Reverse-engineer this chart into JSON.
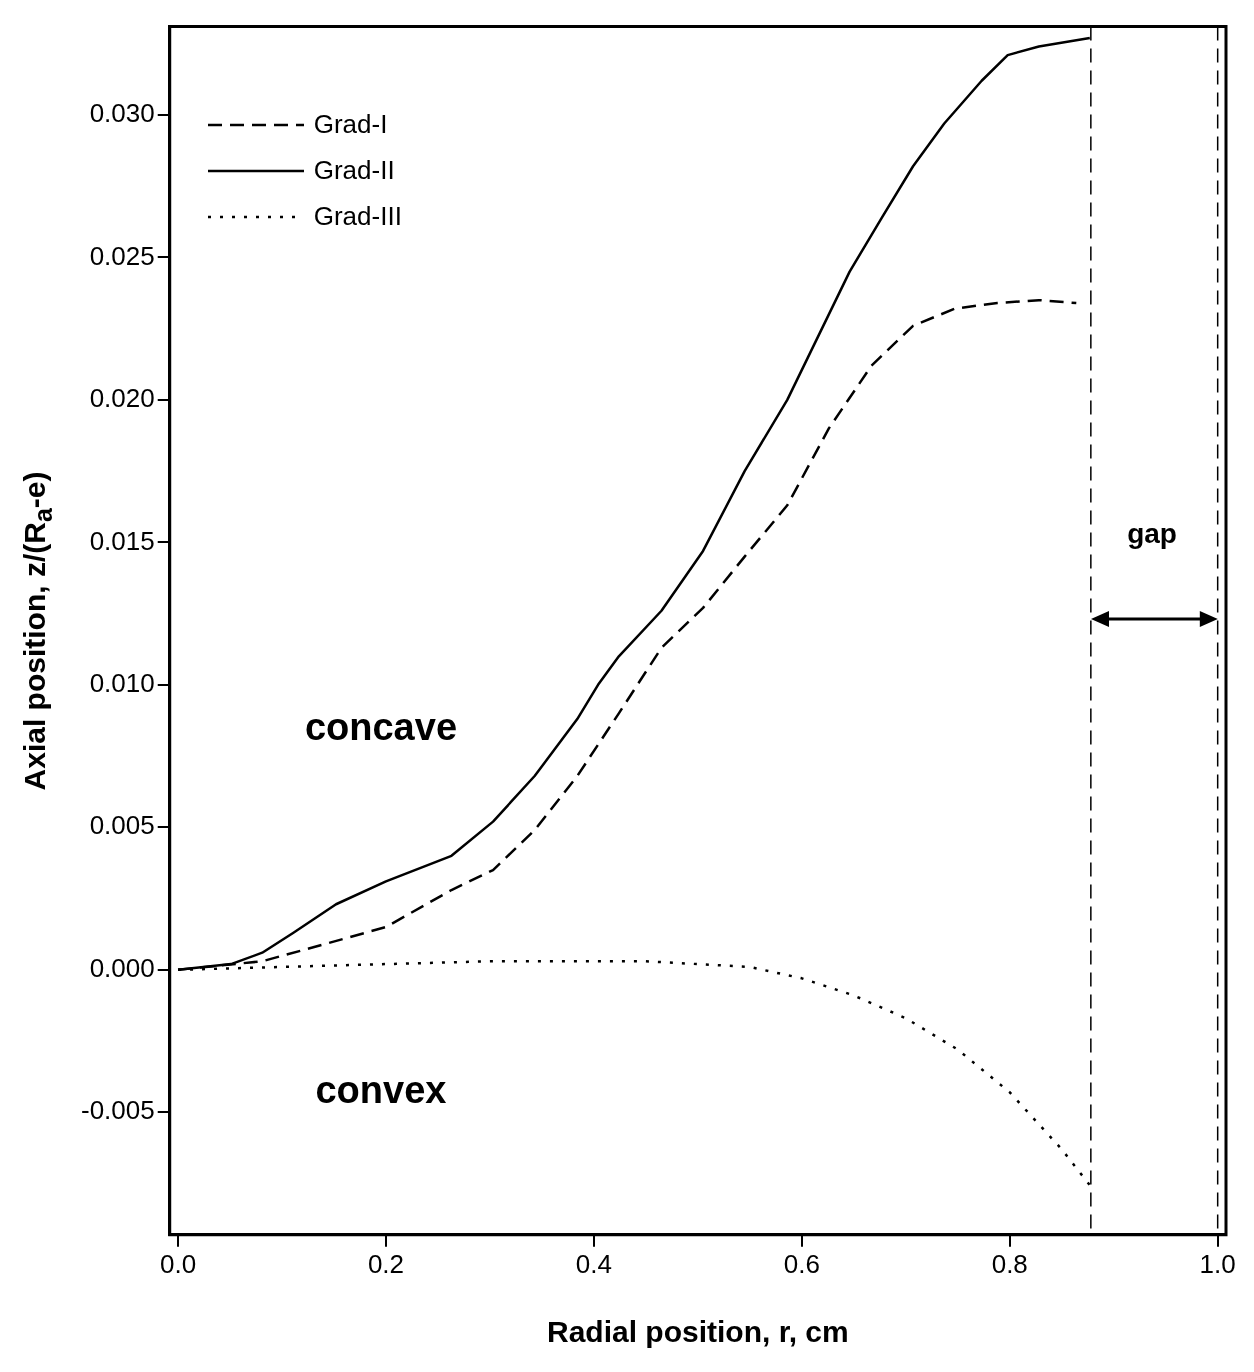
{
  "chart_data": {
    "type": "line",
    "xlabel": "Radial position, r, cm",
    "ylabel": "Axial position, z/(R$_{a}$-e)",
    "xlim": [
      -0.008,
      1.008
    ],
    "ylim": [
      -0.0093,
      0.0331
    ],
    "xticks": [
      {
        "value": 0,
        "label": "0.0"
      },
      {
        "value": 0.2,
        "label": "0.2"
      },
      {
        "value": 0.4,
        "label": "0.4"
      },
      {
        "value": 0.6,
        "label": "0.6"
      },
      {
        "value": 0.8,
        "label": "0.8"
      },
      {
        "value": 1,
        "label": "1.0"
      }
    ],
    "yticks": [
      {
        "value": -0.005,
        "label": "-0.005"
      },
      {
        "value": 0,
        "label": "0.000"
      },
      {
        "value": 0.005,
        "label": "0.005"
      },
      {
        "value": 0.01,
        "label": "0.010"
      },
      {
        "value": 0.015,
        "label": "0.015"
      },
      {
        "value": 0.02,
        "label": "0.020"
      },
      {
        "value": 0.025,
        "label": "0.025"
      },
      {
        "value": 0.03,
        "label": "0.030"
      }
    ],
    "grid": false,
    "legend": "top left",
    "marker": "none",
    "series": [
      {
        "name": "Grad-I",
        "color": "#000000",
        "line_style": "dashed",
        "x": [
          0,
          0.081,
          0.131,
          0.2,
          0.263,
          0.303,
          0.343,
          0.384,
          0.424,
          0.465,
          0.505,
          0.545,
          0.586,
          0.626,
          0.667,
          0.707,
          0.747,
          0.788,
          0.828,
          0.864
        ],
        "values": [
          0,
          0.0003,
          0.0008,
          0.0015,
          0.0028,
          0.0035,
          0.0049,
          0.0068,
          0.009,
          0.0113,
          0.0127,
          0.0145,
          0.0163,
          0.019,
          0.0212,
          0.0226,
          0.0232,
          0.0234,
          0.0235,
          0.0234
        ]
      },
      {
        "name": "Grad-II",
        "color": "#000000",
        "line_style": "solid",
        "x": [
          0,
          0.051,
          0.081,
          0.111,
          0.152,
          0.2,
          0.263,
          0.303,
          0.343,
          0.384,
          0.404,
          0.424,
          0.465,
          0.505,
          0.545,
          0.586,
          0.606,
          0.646,
          0.677,
          0.707,
          0.737,
          0.773,
          0.798,
          0.828,
          0.877
        ],
        "values": [
          0,
          0.0002,
          0.0006,
          0.0013,
          0.0023,
          0.0031,
          0.004,
          0.0052,
          0.0068,
          0.0088,
          0.01,
          0.011,
          0.0126,
          0.0147,
          0.0175,
          0.02,
          0.0215,
          0.0245,
          0.0264,
          0.0282,
          0.0297,
          0.0312,
          0.0321,
          0.0324,
          0.0327
        ]
      },
      {
        "name": "Grad-III",
        "color": "#000000",
        "line_style": "dotted",
        "x": [
          0,
          0.1,
          0.2,
          0.3,
          0.4,
          0.45,
          0.5,
          0.55,
          0.6,
          0.65,
          0.7,
          0.75,
          0.8,
          0.85,
          0.88
        ],
        "values": [
          0,
          0.0001,
          0.0002,
          0.0003,
          0.0003,
          0.0003,
          0.0002,
          0.0001,
          -0.0003,
          -0.0009,
          -0.0017,
          -0.0028,
          -0.0043,
          -0.0063,
          -0.0077
        ]
      }
    ],
    "ref_lines": [
      {
        "axis": "x",
        "value": 0.878,
        "color": "#000000",
        "line_style": "dashed"
      },
      {
        "axis": "x",
        "value": 1.0,
        "color": "#000000",
        "line_style": "dashed"
      }
    ],
    "annotations": [
      "concave",
      "convex",
      "gap"
    ]
  }
}
